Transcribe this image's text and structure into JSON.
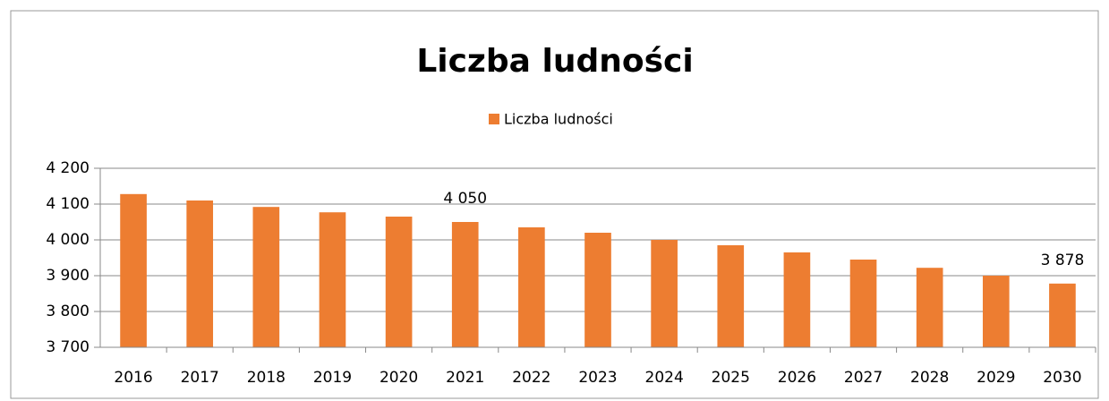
{
  "chart_data": {
    "type": "bar",
    "title": "Liczba ludności",
    "categories": [
      "2016",
      "2017",
      "2018",
      "2019",
      "2020",
      "2021",
      "2022",
      "2023",
      "2024",
      "2025",
      "2026",
      "2027",
      "2028",
      "2029",
      "2030"
    ],
    "series": [
      {
        "name": "Liczba ludności",
        "color": "#ed7d31",
        "values": [
          4128,
          4110,
          4092,
          4077,
          4065,
          4050,
          4035,
          4020,
          4000,
          3985,
          3965,
          3945,
          3922,
          3900,
          3878
        ],
        "value_labels": [
          null,
          null,
          null,
          null,
          null,
          "4 050",
          null,
          null,
          null,
          null,
          null,
          null,
          null,
          null,
          "3 878"
        ]
      }
    ],
    "ylim": [
      3700,
      4200
    ],
    "yticks": [
      {
        "value": 3700,
        "label": "3 700"
      },
      {
        "value": 3800,
        "label": "3 800"
      },
      {
        "value": 3900,
        "label": "3 900"
      },
      {
        "value": 4000,
        "label": "4 000"
      },
      {
        "value": 4100,
        "label": "4 100"
      },
      {
        "value": 4200,
        "label": "4 200"
      }
    ],
    "grid": true,
    "legend": "top"
  }
}
